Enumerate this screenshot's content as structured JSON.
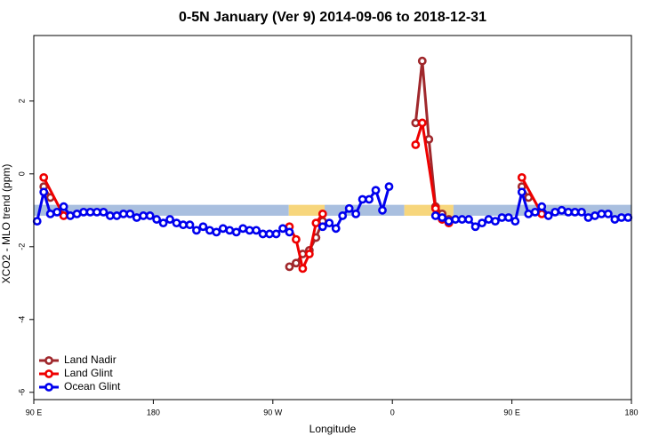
{
  "chart_data": {
    "type": "line",
    "title": "0-5N January (Ver 9)   2014-09-06 to 2018-12-31",
    "x_label": "Longitude",
    "y_label": "XCO2 - MLO trend (ppm)",
    "xlim": [
      90,
      540
    ],
    "ylim": [
      -6.2,
      3.8
    ],
    "xticks": [
      {
        "value": 90,
        "label": "90 E"
      },
      180,
      {
        "value": 270,
        "label": "90 W"
      },
      {
        "value": 360,
        "label": "0"
      },
      {
        "value": 450,
        "label": "90 E"
      },
      {
        "value": 540,
        "label": "180"
      }
    ],
    "yticks": [
      -6,
      -4,
      -2,
      0,
      2
    ],
    "legend": "bottom-left",
    "band": {
      "y": [
        -1.15,
        -0.85
      ],
      "segments": [
        {
          "x": [
            90,
            282
          ],
          "color": "#a9bfdf"
        },
        {
          "x": [
            282,
            309
          ],
          "color": "#f7d67c"
        },
        {
          "x": [
            309,
            369
          ],
          "color": "#a9bfdf"
        },
        {
          "x": [
            369,
            406
          ],
          "color": "#f7d67c"
        },
        {
          "x": [
            406,
            540
          ],
          "color": "#a9bfdf"
        }
      ]
    },
    "series": [
      {
        "name": "Land Nadir",
        "color": "#a0282c",
        "x": [
          97.5,
          102.5,
          null,
          282.5,
          287.5,
          292.5,
          297.5,
          302.5,
          307.5,
          null,
          377.5,
          382.5,
          387.5,
          392.5,
          397.5,
          402.5,
          null,
          457.5,
          462.5
        ],
        "values": [
          -0.35,
          -0.65,
          null,
          -2.55,
          -2.45,
          -2.2,
          -2.1,
          -1.75,
          -1.3,
          null,
          1.4,
          3.1,
          0.95,
          -0.9,
          -1.1,
          -1.25,
          null,
          -0.35,
          -0.65
        ]
      },
      {
        "name": "Land Glint",
        "color": "#ee0000",
        "x": [
          97.5,
          112.5,
          null,
          282.5,
          287.5,
          292.5,
          297.5,
          302.5,
          307.5,
          null,
          377.5,
          382.5,
          392.5,
          397.5,
          402.5,
          null,
          457.5,
          472.5
        ],
        "values": [
          -0.1,
          -1.15,
          null,
          -1.45,
          -1.8,
          -2.6,
          -2.2,
          -1.35,
          -1.1,
          null,
          0.8,
          1.4,
          -0.95,
          -1.25,
          -1.35,
          null,
          -0.1,
          -1.1
        ]
      },
      {
        "name": "Ocean Glint",
        "color": "#0000ee",
        "x": [
          92.5,
          97.5,
          102.5,
          107.5,
          112.5,
          117.5,
          122.5,
          127.5,
          132.5,
          137.5,
          142.5,
          147.5,
          152.5,
          157.5,
          162.5,
          167.5,
          172.5,
          177.5,
          182.5,
          187.5,
          192.5,
          197.5,
          202.5,
          207.5,
          212.5,
          217.5,
          222.5,
          227.5,
          232.5,
          237.5,
          242.5,
          247.5,
          252.5,
          257.5,
          262.5,
          267.5,
          272.5,
          277.5,
          282.5,
          null,
          307.5,
          312.5,
          317.5,
          322.5,
          327.5,
          332.5,
          337.5,
          342.5,
          347.5,
          352.5,
          357.5,
          null,
          392.5,
          397.5,
          402.5,
          407.5,
          412.5,
          417.5,
          422.5,
          427.5,
          432.5,
          437.5,
          442.5,
          447.5,
          452.5,
          457.5,
          462.5,
          467.5,
          472.5,
          477.5,
          482.5,
          487.5,
          492.5,
          497.5,
          502.5,
          507.5,
          512.5,
          517.5,
          522.5,
          527.5,
          532.5,
          537.5
        ],
        "values": [
          -1.3,
          -0.5,
          -1.1,
          -1.05,
          -0.9,
          -1.15,
          -1.1,
          -1.05,
          -1.05,
          -1.05,
          -1.05,
          -1.15,
          -1.15,
          -1.1,
          -1.1,
          -1.2,
          -1.15,
          -1.15,
          -1.25,
          -1.35,
          -1.25,
          -1.35,
          -1.4,
          -1.4,
          -1.55,
          -1.45,
          -1.55,
          -1.6,
          -1.5,
          -1.55,
          -1.6,
          -1.5,
          -1.55,
          -1.55,
          -1.65,
          -1.65,
          -1.65,
          -1.5,
          -1.6,
          null,
          -1.45,
          -1.35,
          -1.5,
          -1.15,
          -0.95,
          -1.1,
          -0.7,
          -0.7,
          -0.45,
          -1.0,
          -0.35,
          null,
          -1.15,
          -1.2,
          -1.3,
          -1.25,
          -1.25,
          -1.25,
          -1.45,
          -1.35,
          -1.25,
          -1.3,
          -1.2,
          -1.2,
          -1.3,
          -0.5,
          -1.1,
          -1.05,
          -0.9,
          -1.15,
          -1.05,
          -1.0,
          -1.05,
          -1.05,
          -1.05,
          -1.2,
          -1.15,
          -1.1,
          -1.1,
          -1.25,
          -1.2,
          -1.2
        ]
      }
    ]
  }
}
